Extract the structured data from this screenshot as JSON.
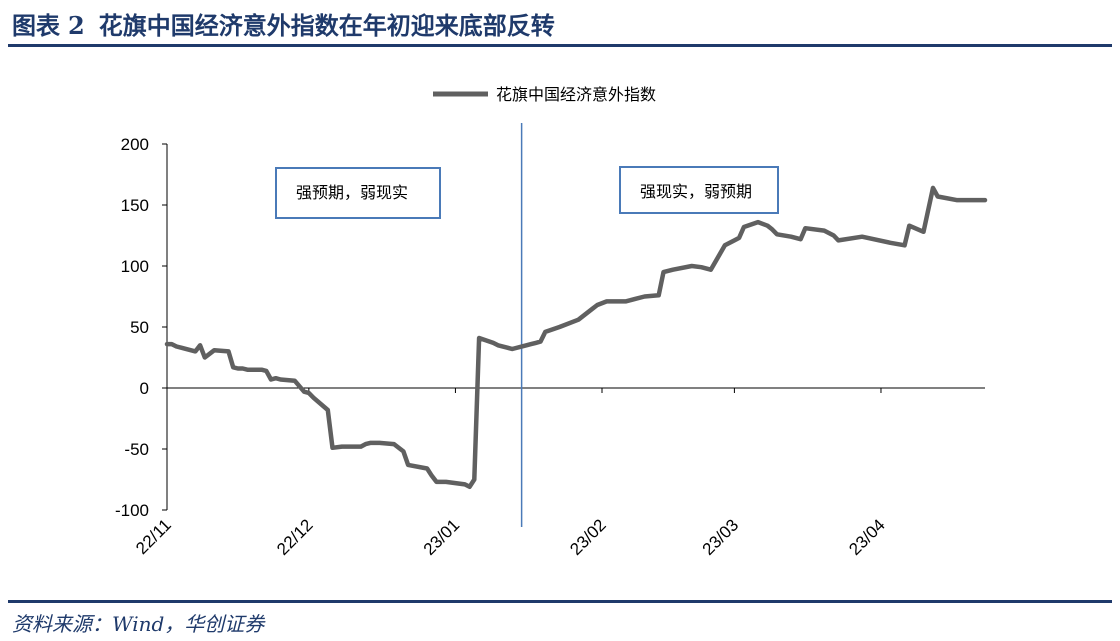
{
  "figure": {
    "label": "图表",
    "number": "2",
    "title": "花旗中国经济意外指数在年初迎来底部反转"
  },
  "source": "资料来源：Wind，华创证券",
  "chart_data": {
    "type": "line",
    "title": "",
    "xlabel": "",
    "ylabel": "",
    "ylim": [
      -100,
      200
    ],
    "y_ticks": [
      200,
      150,
      100,
      50,
      0,
      -50,
      -100
    ],
    "x_ticks": [
      "22/11",
      "22/12",
      "23/01",
      "23/02",
      "23/03",
      "23/04"
    ],
    "legend": {
      "position": "top",
      "entries": [
        "花旗中国经济意外指数"
      ]
    },
    "grid": false,
    "colors": {
      "series": "#606060",
      "divider": "#4a7ab8",
      "annotation_border": "#4a7ab8"
    },
    "series": [
      {
        "name": "花旗中国经济意外指数",
        "x": [
          "2022-11-01",
          "2022-11-02",
          "2022-11-03",
          "2022-11-04",
          "2022-11-07",
          "2022-11-08",
          "2022-11-09",
          "2022-11-10",
          "2022-11-11",
          "2022-11-14",
          "2022-11-15",
          "2022-11-16",
          "2022-11-17",
          "2022-11-18",
          "2022-11-21",
          "2022-11-22",
          "2022-11-23",
          "2022-11-24",
          "2022-11-25",
          "2022-11-28",
          "2022-11-30",
          "2022-12-01",
          "2022-12-02",
          "2022-12-05",
          "2022-12-06",
          "2022-12-08",
          "2022-12-12",
          "2022-12-13",
          "2022-12-14",
          "2022-12-16",
          "2022-12-19",
          "2022-12-21",
          "2022-12-22",
          "2022-12-26",
          "2022-12-27",
          "2022-12-28",
          "2022-12-30",
          "2023-01-03",
          "2023-01-04",
          "2023-01-05",
          "2023-01-06",
          "2023-01-09",
          "2023-01-10",
          "2023-01-12",
          "2023-01-13",
          "2023-01-16",
          "2023-01-17",
          "2023-01-18",
          "2023-01-19",
          "2023-01-20",
          "2023-01-23",
          "2023-01-27",
          "2023-01-30",
          "2023-01-31",
          "2023-02-02",
          "2023-02-06",
          "2023-02-07",
          "2023-02-08",
          "2023-02-10",
          "2023-02-13",
          "2023-02-14",
          "2023-02-16",
          "2023-02-20",
          "2023-02-22",
          "2023-02-24",
          "2023-02-27",
          "2023-03-01",
          "2023-03-02",
          "2023-03-03",
          "2023-03-06",
          "2023-03-08",
          "2023-03-09",
          "2023-03-10",
          "2023-03-13",
          "2023-03-15",
          "2023-03-16",
          "2023-03-20",
          "2023-03-22",
          "2023-03-23",
          "2023-03-28",
          "2023-04-03",
          "2023-04-06",
          "2023-04-07",
          "2023-04-10",
          "2023-04-12",
          "2023-04-13",
          "2023-04-17",
          "2023-04-18",
          "2023-04-19",
          "2023-04-20",
          "2023-04-21",
          "2023-04-22",
          "2023-04-23"
        ],
        "values": [
          36,
          36,
          34,
          33,
          30,
          35,
          25,
          28,
          31,
          30,
          17,
          16,
          16,
          15,
          15,
          14,
          7,
          8,
          7,
          6,
          -3,
          -4,
          -8,
          -18,
          -49,
          -48,
          -48,
          -46,
          -45,
          -45,
          -46,
          -52,
          -63,
          -66,
          -72,
          -77,
          -77,
          -79,
          -81,
          -75,
          41,
          37,
          35,
          33,
          32,
          35,
          36,
          37,
          38,
          46,
          50,
          56,
          65,
          68,
          71,
          71,
          72,
          73,
          75,
          76,
          95,
          97,
          100,
          99,
          97,
          117,
          121,
          123,
          132,
          136,
          133,
          130,
          126,
          124,
          122,
          131,
          129,
          125,
          121,
          124,
          119,
          117,
          133,
          128,
          164,
          157,
          154,
          154,
          154,
          154,
          154,
          154,
          154
        ]
      }
    ],
    "divider_x": "2023-01-15",
    "annotations": [
      {
        "text": "强预期，弱现实"
      },
      {
        "text": "强现实，弱预期"
      }
    ]
  }
}
